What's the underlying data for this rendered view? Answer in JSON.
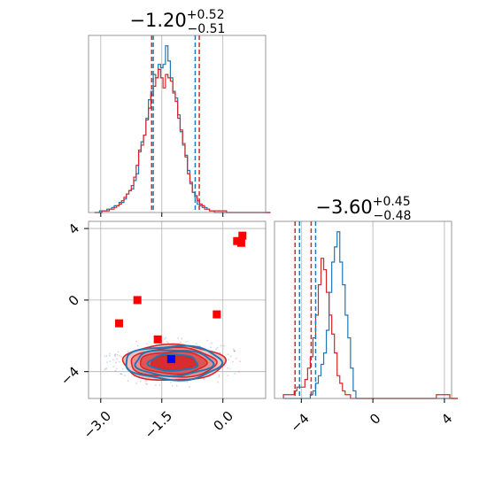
{
  "colors": {
    "blue": "#1f77b4",
    "red": "#d62728",
    "marker_red": "#ff0000",
    "marker_blue": "#0000ff",
    "grid": "#b0b0b0"
  },
  "chart_data": [
    {
      "type": "area",
      "panel": "marginal-x",
      "title_main": "−1.20",
      "title_sup": "+0.52",
      "title_sub": "−0.51",
      "xlim": [
        -3.3,
        1.05
      ],
      "grid": true,
      "tick_labels_hidden": true,
      "bin_edges_start": -3.15,
      "bin_width": 0.06,
      "series": [
        {
          "color": "#1f77b4",
          "counts": [
            0,
            0,
            1,
            1,
            1,
            2,
            2,
            3,
            4,
            4,
            6,
            6,
            8,
            11,
            13,
            14,
            19,
            23,
            36,
            42,
            46,
            56,
            67,
            72,
            82,
            80,
            88,
            86,
            88,
            99,
            90,
            80,
            72,
            68,
            58,
            48,
            40,
            34,
            25,
            17,
            12,
            9,
            5,
            4,
            3,
            3,
            2,
            1,
            1,
            0,
            0,
            0,
            0,
            0,
            0,
            0,
            0,
            0,
            0,
            0,
            0,
            0,
            0,
            0,
            0,
            0,
            0,
            0,
            0,
            0,
            0,
            0
          ],
          "quantile_lines": [
            -1.71,
            -0.68
          ]
        },
        {
          "color": "#d62728",
          "counts": [
            0,
            0,
            0,
            1,
            1,
            1,
            2,
            2,
            3,
            4,
            5,
            7,
            9,
            11,
            13,
            16,
            21,
            28,
            37,
            40,
            46,
            55,
            62,
            70,
            75,
            80,
            85,
            80,
            74,
            82,
            80,
            78,
            71,
            66,
            56,
            49,
            41,
            33,
            23,
            18,
            12,
            10,
            7,
            5,
            4,
            2,
            2,
            1,
            1,
            1,
            1,
            1,
            1,
            1,
            0,
            0,
            0,
            0,
            0,
            0,
            0,
            0,
            0,
            0,
            0,
            0,
            0,
            0,
            0,
            0,
            0,
            0
          ],
          "quantile_lines": [
            -1.75,
            -0.58
          ]
        }
      ]
    },
    {
      "type": "area",
      "panel": "marginal-y",
      "title_main": "−3.60",
      "title_sup": "+0.45",
      "title_sub": "−0.48",
      "xlim": [
        -5.5,
        4.4
      ],
      "grid": true,
      "xticks": [
        -4,
        0,
        4
      ],
      "xtick_labels": [
        "−4",
        "0",
        "4"
      ],
      "bin_edges_start": -5.0,
      "bin_width": 0.15,
      "series": [
        {
          "color": "#1f77b4",
          "counts": [
            0,
            0,
            0,
            0,
            0,
            0,
            0,
            0,
            0,
            0,
            1,
            2,
            4,
            6,
            9,
            12,
            18,
            28,
            36,
            40,
            44,
            36,
            30,
            22,
            16,
            8,
            2,
            0,
            0,
            0,
            0,
            0,
            0,
            0,
            0,
            0,
            0,
            0,
            0,
            0,
            0,
            0,
            0,
            0,
            0,
            0,
            0,
            0,
            0,
            0,
            0,
            0,
            0,
            0,
            0,
            0,
            0,
            0,
            0,
            0,
            0,
            0,
            0,
            0,
            0
          ],
          "quantile_lines": [
            -4.1,
            -3.2
          ]
        },
        {
          "color": "#d62728",
          "counts": [
            1,
            1,
            1,
            1,
            2,
            3,
            3,
            3,
            5,
            8,
            11,
            16,
            22,
            30,
            37,
            34,
            28,
            22,
            17,
            12,
            6,
            4,
            2,
            1,
            1,
            0,
            0,
            0,
            0,
            0,
            0,
            0,
            0,
            0,
            0,
            0,
            0,
            0,
            0,
            0,
            0,
            0,
            0,
            0,
            0,
            0,
            0,
            0,
            0,
            0,
            0,
            0,
            0,
            0,
            0,
            0,
            0,
            1,
            1,
            1,
            1,
            1,
            0,
            0,
            0
          ],
          "quantile_lines": [
            -4.35,
            -3.45
          ]
        }
      ]
    },
    {
      "type": "scatter",
      "panel": "joint",
      "xlim": [
        -3.3,
        1.05
      ],
      "ylim": [
        -5.5,
        4.4
      ],
      "grid": true,
      "xticks": [
        -3.0,
        -1.5,
        0.0
      ],
      "xtick_labels": [
        "−3.0",
        "−1.5",
        "0.0"
      ],
      "yticks": [
        -4,
        0,
        4
      ],
      "ytick_labels": [
        "−4",
        "0",
        "4"
      ],
      "red_markers": [
        {
          "x": -2.55,
          "y": -1.3
        },
        {
          "x": -2.1,
          "y": 0.0
        },
        {
          "x": -1.6,
          "y": -2.2
        },
        {
          "x": -0.15,
          "y": -0.8
        },
        {
          "x": 0.35,
          "y": 3.3
        },
        {
          "x": 0.45,
          "y": 3.2
        },
        {
          "x": 0.48,
          "y": 3.6
        }
      ],
      "blue_markers": [
        {
          "x": -1.27,
          "y": -3.3
        }
      ],
      "contours": {
        "center": [
          -1.22,
          -3.5
        ],
        "red_levels": [
          [
            1.25,
            1.0
          ],
          [
            1.05,
            0.82
          ],
          [
            0.82,
            0.62
          ],
          [
            0.55,
            0.42
          ]
        ],
        "blue_levels": [
          [
            1.18,
            0.94
          ],
          [
            0.95,
            0.72
          ],
          [
            0.6,
            0.46
          ]
        ]
      }
    }
  ]
}
